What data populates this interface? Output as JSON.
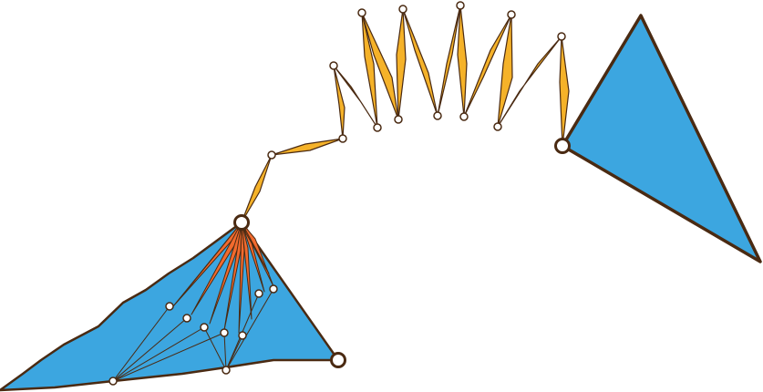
{
  "diagram": {
    "colors": {
      "background": "#ffffff",
      "polygon_fill": "#3ca6e0",
      "fan_fill": "#f26a2e",
      "link_fill": "#f5b229",
      "stroke": "#4a2a12",
      "node_fill": "#ffffff"
    },
    "shapes": [
      "blue-polygon",
      "blue-triangle"
    ],
    "text_labels": []
  }
}
